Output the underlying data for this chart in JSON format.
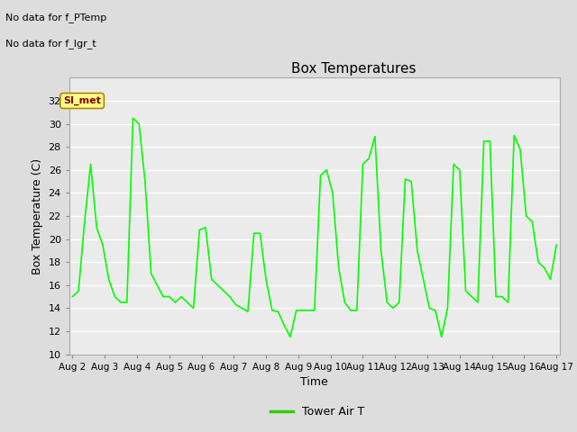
{
  "title": "Box Temperatures",
  "ylabel": "Box Temperature (C)",
  "xlabel": "Time",
  "ylim": [
    10,
    34
  ],
  "yticks": [
    10,
    12,
    14,
    16,
    18,
    20,
    22,
    24,
    26,
    28,
    30,
    32
  ],
  "xtick_labels": [
    "Aug 2",
    "Aug 3",
    "Aug 4",
    "Aug 5",
    "Aug 6",
    "Aug 7",
    "Aug 8",
    "Aug 9",
    "Aug 10",
    "Aug 11",
    "Aug 12",
    "Aug 13",
    "Aug 14",
    "Aug 15",
    "Aug 16",
    "Aug 17"
  ],
  "annotation_line1": "No data for f_PTemp",
  "annotation_line2": "No data for f_lgr_t",
  "legend_label": "Tower Air T",
  "line_color": "#00ff00",
  "legend_line_color": "#33cc00",
  "bg_color": "#dddddd",
  "plot_bg_color": "#ebebeb",
  "grid_color": "#ffffff",
  "si_met_label": "SI_met",
  "si_met_text_color": "#880000",
  "si_met_bg_color": "#ffff88",
  "si_met_edge_color": "#aa8800",
  "tower_air_t": [
    15.0,
    15.5,
    21.5,
    26.5,
    21.0,
    19.5,
    16.5,
    15.0,
    14.5,
    14.5,
    30.5,
    30.0,
    25.0,
    17.0,
    16.0,
    15.0,
    15.0,
    14.5,
    15.0,
    14.5,
    14.0,
    20.8,
    21.0,
    16.5,
    16.0,
    15.5,
    15.0,
    14.3,
    14.0,
    13.7,
    20.5,
    20.5,
    16.5,
    13.8,
    13.7,
    12.5,
    11.5,
    13.8,
    13.8,
    13.8,
    13.8,
    25.5,
    26.0,
    24.0,
    17.5,
    14.5,
    13.8,
    13.8,
    26.5,
    27.0,
    28.9,
    19.0,
    14.5,
    14.0,
    14.5,
    25.2,
    25.0,
    19.0,
    16.5,
    14.0,
    13.8,
    11.5,
    14.0,
    26.5,
    26.0,
    15.5,
    15.0,
    14.5,
    28.5,
    28.5,
    15.0,
    15.0,
    14.5,
    29.0,
    27.8,
    22.0,
    21.5,
    18.0,
    17.5,
    16.5,
    19.5
  ],
  "figsize": [
    6.4,
    4.8
  ],
  "dpi": 100
}
